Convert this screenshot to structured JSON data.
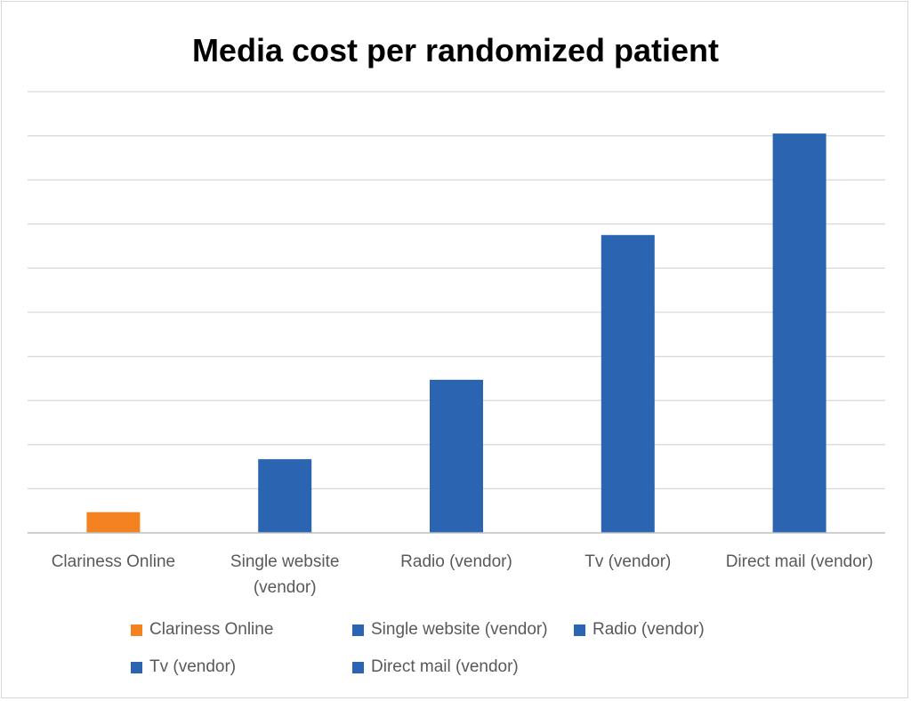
{
  "colors": {
    "highlight": "#f58220",
    "vendor": "#2b65b1",
    "grid": "#d9d9d9",
    "axis": "#bfbfbf",
    "text": "#595959"
  },
  "chart_data": {
    "type": "bar",
    "title": "Media cost per randomized patient",
    "xlabel": "",
    "ylabel": "",
    "ylim": [
      0,
      10
    ],
    "y_axis_labels_shown": false,
    "grid": true,
    "legend_position": "bottom",
    "categories": [
      "Clariness Online",
      "Single website (vendor)",
      "Radio (vendor)",
      "Tv (vendor)",
      "Direct mail (vendor)"
    ],
    "category_label_lines": [
      [
        "Clariness Online"
      ],
      [
        "Single website",
        "(vendor)"
      ],
      [
        "Radio (vendor)"
      ],
      [
        "Tv (vendor)"
      ],
      [
        "Direct mail (vendor)"
      ]
    ],
    "values": [
      0.47,
      1.67,
      3.47,
      6.75,
      9.05
    ],
    "bar_colors": [
      "#f58220",
      "#2b65b1",
      "#2b65b1",
      "#2b65b1",
      "#2b65b1"
    ],
    "legend": [
      {
        "label": "Clariness Online",
        "color": "#f58220"
      },
      {
        "label": "Single website (vendor)",
        "color": "#2b65b1"
      },
      {
        "label": "Radio (vendor)",
        "color": "#2b65b1"
      },
      {
        "label": "Tv (vendor)",
        "color": "#2b65b1"
      },
      {
        "label": "Direct mail (vendor)",
        "color": "#2b65b1"
      }
    ]
  }
}
